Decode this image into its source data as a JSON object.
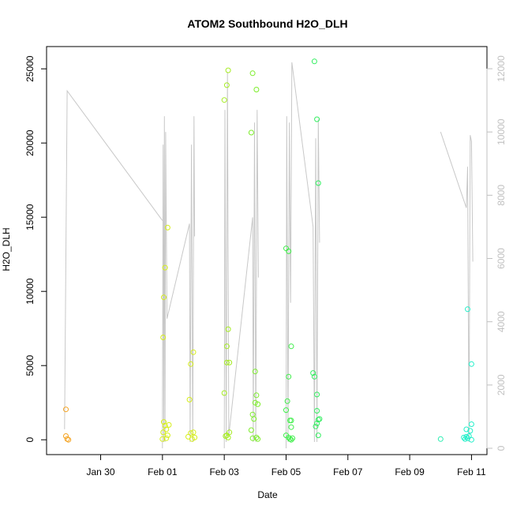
{
  "chart_data": {
    "type": "scatter",
    "title": "ATOM2 Southbound H2O_DLH",
    "xlabel": "Date",
    "ylabel": "H2O_DLH",
    "x_axis": {
      "type": "date",
      "range": [
        "2023-01-28T06:00",
        "2023-02-11T12:00"
      ],
      "ticks": [
        {
          "date": "2023-01-30",
          "label": "Jan 30"
        },
        {
          "date": "2023-02-01",
          "label": "Feb 01"
        },
        {
          "date": "2023-02-03",
          "label": "Feb 03"
        },
        {
          "date": "2023-02-05",
          "label": "Feb 05"
        },
        {
          "date": "2023-02-07",
          "label": "Feb 07"
        },
        {
          "date": "2023-02-09",
          "label": "Feb 09"
        },
        {
          "date": "2023-02-11",
          "label": "Feb 11"
        }
      ]
    },
    "y_axis": {
      "range": [
        -1000,
        26500
      ],
      "ticks": [
        0,
        5000,
        10000,
        15000,
        20000,
        25000
      ]
    },
    "y2_axis": {
      "range": [
        -200,
        12700
      ],
      "ticks": [
        0,
        2000,
        4000,
        6000,
        8000,
        10000,
        12000
      ],
      "color": "#c0c0c0"
    },
    "grid": false,
    "legend": "none",
    "points": [
      {
        "x": "2023-01-28T21:00",
        "y": 2050,
        "color": "#f4a21f"
      },
      {
        "x": "2023-01-28T21:00",
        "y": 250,
        "color": "#f4a21f"
      },
      {
        "x": "2023-01-28T22:00",
        "y": 50,
        "color": "#f4a21f"
      },
      {
        "x": "2023-01-28T23:00",
        "y": 0,
        "color": "#f4a21f"
      },
      {
        "x": "2023-02-01T00:30",
        "y": 6900,
        "color": "#d6ee1a"
      },
      {
        "x": "2023-02-01T01:00",
        "y": 9600,
        "color": "#d6ee1a"
      },
      {
        "x": "2023-02-01T02:00",
        "y": 11600,
        "color": "#d6ee1a"
      },
      {
        "x": "2023-02-01T04:00",
        "y": 14300,
        "color": "#d6ee1a"
      },
      {
        "x": "2023-02-01T00:30",
        "y": 500,
        "color": "#d6ee1a"
      },
      {
        "x": "2023-02-01T01:00",
        "y": 1200,
        "color": "#d6ee1a"
      },
      {
        "x": "2023-02-01T02:00",
        "y": 950,
        "color": "#d6ee1a"
      },
      {
        "x": "2023-02-01T03:00",
        "y": 700,
        "color": "#d6ee1a"
      },
      {
        "x": "2023-02-01T04:00",
        "y": 300,
        "color": "#d6ee1a"
      },
      {
        "x": "2023-02-01T05:00",
        "y": 1000,
        "color": "#d6ee1a"
      },
      {
        "x": "2023-02-01T00:00",
        "y": 50,
        "color": "#d6ee1a"
      },
      {
        "x": "2023-02-01T03:00",
        "y": 100,
        "color": "#d6ee1a"
      },
      {
        "x": "2023-02-01T21:00",
        "y": 2700,
        "color": "#d6ee1a"
      },
      {
        "x": "2023-02-01T22:00",
        "y": 5100,
        "color": "#d6ee1a"
      },
      {
        "x": "2023-02-02T00:00",
        "y": 5900,
        "color": "#d6ee1a"
      },
      {
        "x": "2023-02-01T20:00",
        "y": 200,
        "color": "#d6ee1a"
      },
      {
        "x": "2023-02-01T22:00",
        "y": 450,
        "color": "#d6ee1a"
      },
      {
        "x": "2023-02-01T23:00",
        "y": 50,
        "color": "#d6ee1a"
      },
      {
        "x": "2023-02-02T00:00",
        "y": 500,
        "color": "#d6ee1a"
      },
      {
        "x": "2023-02-02T01:00",
        "y": 150,
        "color": "#d6ee1a"
      },
      {
        "x": "2023-02-03T00:00",
        "y": 22900,
        "color": "#a6ec24"
      },
      {
        "x": "2023-02-03T03:00",
        "y": 24900,
        "color": "#a6ec24"
      },
      {
        "x": "2023-02-03T02:00",
        "y": 23900,
        "color": "#a6ec24"
      },
      {
        "x": "2023-02-03T03:00",
        "y": 7450,
        "color": "#a6ec24"
      },
      {
        "x": "2023-02-03T02:00",
        "y": 6300,
        "color": "#a6ec24"
      },
      {
        "x": "2023-02-03T02:00",
        "y": 5200,
        "color": "#a6ec24"
      },
      {
        "x": "2023-02-03T04:00",
        "y": 5200,
        "color": "#a6ec24"
      },
      {
        "x": "2023-02-03T00:00",
        "y": 3150,
        "color": "#a6ec24"
      },
      {
        "x": "2023-02-03T02:00",
        "y": 300,
        "color": "#a6ec24"
      },
      {
        "x": "2023-02-03T03:00",
        "y": 150,
        "color": "#a6ec24"
      },
      {
        "x": "2023-02-03T04:00",
        "y": 500,
        "color": "#a6ec24"
      },
      {
        "x": "2023-02-03T01:00",
        "y": 250,
        "color": "#a6ec24"
      },
      {
        "x": "2023-02-03T22:00",
        "y": 24700,
        "color": "#7ded2b"
      },
      {
        "x": "2023-02-04T01:00",
        "y": 23600,
        "color": "#7ded2b"
      },
      {
        "x": "2023-02-03T21:00",
        "y": 20700,
        "color": "#7ded2b"
      },
      {
        "x": "2023-02-04T00:00",
        "y": 4600,
        "color": "#7ded2b"
      },
      {
        "x": "2023-02-04T01:00",
        "y": 3000,
        "color": "#7ded2b"
      },
      {
        "x": "2023-02-04T00:00",
        "y": 2500,
        "color": "#7ded2b"
      },
      {
        "x": "2023-02-04T02:00",
        "y": 2400,
        "color": "#7ded2b"
      },
      {
        "x": "2023-02-03T22:00",
        "y": 1700,
        "color": "#7ded2b"
      },
      {
        "x": "2023-02-03T23:00",
        "y": 1400,
        "color": "#7ded2b"
      },
      {
        "x": "2023-02-03T21:00",
        "y": 650,
        "color": "#7ded2b"
      },
      {
        "x": "2023-02-03T22:00",
        "y": 100,
        "color": "#7ded2b"
      },
      {
        "x": "2023-02-04T01:00",
        "y": 150,
        "color": "#7ded2b"
      },
      {
        "x": "2023-02-04T02:00",
        "y": 50,
        "color": "#7ded2b"
      },
      {
        "x": "2023-02-05T00:00",
        "y": 12900,
        "color": "#3fee4a"
      },
      {
        "x": "2023-02-05T02:00",
        "y": 12700,
        "color": "#3fee4a"
      },
      {
        "x": "2023-02-05T04:00",
        "y": 6300,
        "color": "#3fee4a"
      },
      {
        "x": "2023-02-05T02:00",
        "y": 4250,
        "color": "#3fee4a"
      },
      {
        "x": "2023-02-05T01:00",
        "y": 2600,
        "color": "#3fee4a"
      },
      {
        "x": "2023-02-05T00:00",
        "y": 2000,
        "color": "#3fee4a"
      },
      {
        "x": "2023-02-05T03:00",
        "y": 1300,
        "color": "#3fee4a"
      },
      {
        "x": "2023-02-05T04:00",
        "y": 1300,
        "color": "#3fee4a"
      },
      {
        "x": "2023-02-05T04:00",
        "y": 850,
        "color": "#3fee4a"
      },
      {
        "x": "2023-02-05T00:00",
        "y": 300,
        "color": "#3fee4a"
      },
      {
        "x": "2023-02-05T02:00",
        "y": 150,
        "color": "#3fee4a"
      },
      {
        "x": "2023-02-05T03:00",
        "y": 50,
        "color": "#3fee4a"
      },
      {
        "x": "2023-02-05T04:00",
        "y": 0,
        "color": "#3fee4a"
      },
      {
        "x": "2023-02-05T05:00",
        "y": 100,
        "color": "#3fee4a"
      },
      {
        "x": "2023-02-05T22:00",
        "y": 25500,
        "color": "#33ee60"
      },
      {
        "x": "2023-02-06T00:00",
        "y": 21600,
        "color": "#33ee60"
      },
      {
        "x": "2023-02-06T01:00",
        "y": 17300,
        "color": "#33ee60"
      },
      {
        "x": "2023-02-05T21:00",
        "y": 4500,
        "color": "#33ee60"
      },
      {
        "x": "2023-02-05T22:00",
        "y": 4250,
        "color": "#33ee60"
      },
      {
        "x": "2023-02-06T00:00",
        "y": 3050,
        "color": "#33ee60"
      },
      {
        "x": "2023-02-06T00:00",
        "y": 1950,
        "color": "#33ee60"
      },
      {
        "x": "2023-02-06T01:00",
        "y": 1350,
        "color": "#33ee60"
      },
      {
        "x": "2023-02-06T02:00",
        "y": 1400,
        "color": "#33ee60"
      },
      {
        "x": "2023-02-06T00:00",
        "y": 1100,
        "color": "#33ee60"
      },
      {
        "x": "2023-02-05T23:00",
        "y": 900,
        "color": "#33ee60"
      },
      {
        "x": "2023-02-06T01:00",
        "y": 300,
        "color": "#33ee60"
      },
      {
        "x": "2023-02-10T00:00",
        "y": 50,
        "color": "#2bedb2"
      },
      {
        "x": "2023-02-10T21:00",
        "y": 8800,
        "color": "#22efc9"
      },
      {
        "x": "2023-02-11T00:00",
        "y": 5100,
        "color": "#22efc9"
      },
      {
        "x": "2023-02-11T00:00",
        "y": 1050,
        "color": "#22efc9"
      },
      {
        "x": "2023-02-10T20:00",
        "y": 700,
        "color": "#22efc9"
      },
      {
        "x": "2023-02-10T23:00",
        "y": 600,
        "color": "#22efc9"
      },
      {
        "x": "2023-02-10T18:00",
        "y": 150,
        "color": "#22efc9"
      },
      {
        "x": "2023-02-10T19:00",
        "y": 50,
        "color": "#22efc9"
      },
      {
        "x": "2023-02-10T20:00",
        "y": 200,
        "color": "#22efc9"
      },
      {
        "x": "2023-02-10T21:00",
        "y": 100,
        "color": "#22efc9"
      },
      {
        "x": "2023-02-10T22:00",
        "y": 250,
        "color": "#22efc9"
      },
      {
        "x": "2023-02-11T00:00",
        "y": 0,
        "color": "#22efc9"
      }
    ],
    "secondary_line": {
      "axis": "right",
      "color": "#c8c8c8",
      "segments": [
        [
          [
            "2023-01-28T20:00",
            600
          ],
          [
            "2023-01-28T22:00",
            11300
          ],
          [
            "2023-02-01T00:00",
            7200
          ]
        ],
        [
          [
            "2023-02-01T00:00",
            0
          ],
          [
            "2023-02-01T00:30",
            9600
          ],
          [
            "2023-02-01T01:00",
            200
          ],
          [
            "2023-02-01T01:30",
            10500
          ],
          [
            "2023-02-01T02:00",
            200
          ],
          [
            "2023-02-01T02:30",
            10000
          ],
          [
            "2023-02-01T03:30",
            4100
          ],
          [
            "2023-02-01T21:00",
            7100
          ],
          [
            "2023-02-01T21:30",
            200
          ],
          [
            "2023-02-01T22:30",
            9600
          ],
          [
            "2023-02-01T23:30",
            200
          ],
          [
            "2023-02-02T00:30",
            10500
          ],
          [
            "2023-02-02T01:00",
            6700
          ]
        ],
        [
          [
            "2023-02-03T00:00",
            0
          ],
          [
            "2023-02-03T00:30",
            10700
          ],
          [
            "2023-02-03T01:30",
            200
          ],
          [
            "2023-02-03T02:30",
            11900
          ],
          [
            "2023-02-03T03:30",
            400
          ],
          [
            "2023-02-03T22:00",
            7300
          ],
          [
            "2023-02-03T22:30",
            200
          ],
          [
            "2023-02-03T23:30",
            10300
          ],
          [
            "2023-02-04T00:30",
            200
          ],
          [
            "2023-02-04T01:30",
            10700
          ],
          [
            "2023-02-04T02:30",
            5400
          ]
        ],
        [
          [
            "2023-02-05T00:00",
            0
          ],
          [
            "2023-02-05T00:30",
            10500
          ],
          [
            "2023-02-05T01:30",
            200
          ],
          [
            "2023-02-05T02:30",
            10300
          ],
          [
            "2023-02-05T03:30",
            4600
          ],
          [
            "2023-02-05T04:30",
            12200
          ],
          [
            "2023-02-05T21:00",
            7000
          ],
          [
            "2023-02-05T22:00",
            200
          ],
          [
            "2023-02-05T23:00",
            9800
          ],
          [
            "2023-02-06T00:00",
            200
          ],
          [
            "2023-02-06T01:00",
            10400
          ],
          [
            "2023-02-06T02:00",
            6500
          ]
        ],
        [
          [
            "2023-02-10T00:00",
            10000
          ],
          [
            "2023-02-10T20:00",
            7600
          ],
          [
            "2023-02-10T21:00",
            8900
          ],
          [
            "2023-02-10T22:00",
            200
          ],
          [
            "2023-02-10T23:00",
            9900
          ],
          [
            "2023-02-11T00:00",
            9700
          ],
          [
            "2023-02-11T01:00",
            5900
          ]
        ]
      ]
    }
  }
}
